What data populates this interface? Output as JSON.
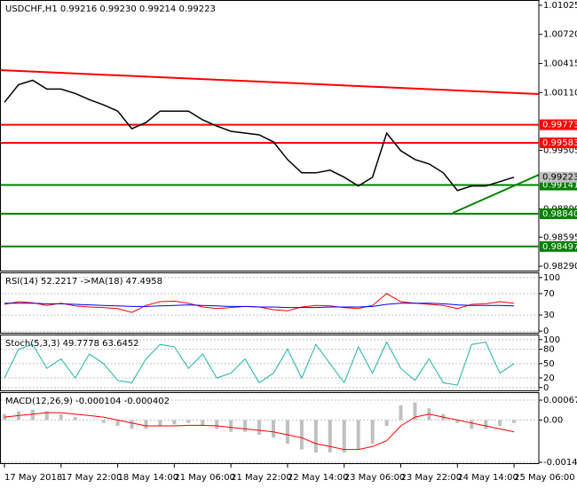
{
  "chart_data": [
    {
      "type": "line",
      "title": "USDCHF,H1  0.99216 0.99230 0.99214 0.99223",
      "x": [
        0,
        4,
        8,
        12,
        16,
        20,
        24,
        28,
        32,
        36,
        40,
        44,
        48,
        52,
        56,
        60,
        64,
        68,
        72,
        76,
        80,
        84,
        88,
        92,
        96,
        100,
        104,
        108,
        112,
        116,
        120,
        124,
        128,
        132,
        136,
        140,
        144
      ],
      "series": [
        {
          "color": "#000000",
          "values": [
            1.00008,
            1.00193,
            1.00239,
            1.00147,
            1.00147,
            1.00101,
            1.00036,
            0.99981,
            0.99916,
            0.99731,
            0.99796,
            0.99916,
            0.99916,
            0.99916,
            0.99824,
            0.99759,
            0.99704,
            0.99685,
            0.99667,
            0.99593,
            0.99408,
            0.99269,
            0.99269,
            0.99297,
            0.99223,
            0.99131,
            0.99223,
            0.99685,
            0.995,
            0.99408,
            0.99362,
            0.99269,
            0.99084,
            0.99131,
            0.99131,
            0.99177,
            0.99223
          ]
        }
      ],
      "levels": [
        {
          "value": 0.99773,
          "label": "0.99773",
          "color": "#ff0000"
        },
        {
          "value": 0.99583,
          "label": "0.99583",
          "color": "#ff0000"
        },
        {
          "value": 0.99141,
          "label": "0.99141",
          "color": "#008000"
        },
        {
          "value": 0.9884,
          "label": "0.98840",
          "color": "#008000"
        },
        {
          "value": 0.98497,
          "label": "0.98497",
          "color": "#008000"
        }
      ],
      "current": {
        "value": 0.99223,
        "label": "0.99223",
        "color": "#c0c0c0"
      },
      "ylim": [
        0.98244,
        1.01071
      ],
      "yticks": [
        1.01025,
        {
          "value": 1.0072,
          "label": "1.00720"
        },
        1.00415,
        {
          "value": 1.0011,
          "label": "1.00110"
        },
        0.99505,
        {
          "value": 0.9889,
          "label": "0.98890"
        },
        0.98595,
        {
          "value": 0.9829,
          "label": "0.98290"
        }
      ],
      "xlim": [
        -1,
        151
      ],
      "xticks": [
        {
          "value": 0,
          "label": "17 May 2018"
        },
        {
          "value": 16,
          "label": "17 May 22:00"
        },
        {
          "value": 32,
          "label": "18 May 14:00"
        },
        {
          "value": 48,
          "label": "21 May 06:00"
        },
        {
          "value": 64,
          "label": "21 May 22:00"
        },
        {
          "value": 80,
          "label": "22 May 14:00"
        },
        {
          "value": 96,
          "label": "23 May 06:00"
        },
        {
          "value": 112,
          "label": "23 May 22:00"
        },
        {
          "value": 128,
          "label": "24 May 14:00"
        },
        {
          "value": 144,
          "label": "25 May 06:00"
        }
      ]
    },
    {
      "type": "line",
      "title": "RSI(14) 52.2217  ->MA(18) 47.4958",
      "x": [
        0,
        4,
        8,
        12,
        16,
        20,
        24,
        28,
        32,
        36,
        40,
        44,
        48,
        52,
        56,
        60,
        64,
        68,
        72,
        76,
        80,
        84,
        88,
        92,
        96,
        100,
        104,
        108,
        112,
        116,
        120,
        124,
        128,
        132,
        136,
        140,
        144
      ],
      "series": [
        {
          "color": "#ff0000",
          "values": [
            50,
            55,
            53,
            48,
            52,
            47,
            45,
            44,
            42,
            35,
            48,
            55,
            56,
            52,
            45,
            42,
            44,
            46,
            45,
            40,
            38,
            45,
            48,
            47,
            44,
            42,
            48,
            70,
            55,
            52,
            50,
            48,
            42,
            50,
            51,
            55,
            52
          ]
        },
        {
          "color": "#0000ff",
          "values": [
            52,
            52,
            52,
            51,
            51,
            50,
            49,
            48,
            47,
            46,
            46,
            47,
            48,
            49,
            48,
            47,
            46,
            46,
            45,
            45,
            44,
            44,
            44,
            45,
            45,
            45,
            46,
            50,
            52,
            52,
            52,
            51,
            49,
            48,
            48,
            48,
            47
          ]
        }
      ],
      "ylim": [
        -3,
        108
      ],
      "yticks": [
        100,
        70,
        30,
        0
      ]
    },
    {
      "type": "line",
      "title": "Stoch(5,3,3) 49.7778 63.6452",
      "x": [
        0,
        4,
        8,
        12,
        16,
        20,
        24,
        28,
        32,
        36,
        40,
        44,
        48,
        52,
        56,
        60,
        64,
        68,
        72,
        76,
        80,
        84,
        88,
        92,
        96,
        100,
        104,
        108,
        112,
        116,
        120,
        124,
        128,
        132,
        136,
        140,
        144
      ],
      "series": [
        {
          "color": "#20b2aa",
          "values": [
            20,
            80,
            90,
            40,
            60,
            20,
            70,
            50,
            15,
            10,
            60,
            90,
            85,
            40,
            70,
            20,
            30,
            60,
            10,
            30,
            80,
            20,
            90,
            50,
            10,
            85,
            30,
            95,
            40,
            15,
            60,
            10,
            5,
            90,
            95,
            30,
            50
          ]
        }
      ],
      "ylim": [
        -6,
        109
      ],
      "yticks": [
        100,
        80,
        50,
        20,
        0
      ]
    },
    {
      "type": "bar",
      "title": "MACD(12,26,9) -0.000104 -0.000402",
      "x": [
        0,
        4,
        8,
        12,
        16,
        20,
        24,
        28,
        32,
        36,
        40,
        44,
        48,
        52,
        56,
        60,
        64,
        68,
        72,
        76,
        80,
        84,
        88,
        92,
        96,
        100,
        104,
        108,
        112,
        116,
        120,
        124,
        128,
        132,
        136,
        140,
        144
      ],
      "values": [
        0.0002,
        0.0003,
        0.00035,
        0.0003,
        0.0002,
        0.0001,
        0,
        -0.0001,
        -0.0002,
        -0.0003,
        -0.0003,
        -0.0002,
        -0.00015,
        -0.0001,
        -0.0002,
        -0.0003,
        -0.0004,
        -0.0004,
        -0.0005,
        -0.0006,
        -0.0008,
        -0.001,
        -0.0011,
        -0.0011,
        -0.0011,
        -0.001,
        -0.0008,
        -0.0002,
        0.0005,
        0.0006,
        0.0004,
        0.0002,
        -0.0001,
        -0.0003,
        -0.0003,
        -0.0002,
        -0.000104
      ],
      "color": "#c0c0c0",
      "series": [
        {
          "color": "#ff0000",
          "values": [
            0.0001,
            0.00015,
            0.0002,
            0.00025,
            0.00025,
            0.0002,
            0.00015,
            0.0001,
            0,
            -0.0001,
            -0.0002,
            -0.0002,
            -0.0002,
            -0.00018,
            -0.00018,
            -0.0002,
            -0.00025,
            -0.0003,
            -0.00035,
            -0.0004,
            -0.0005,
            -0.0006,
            -0.0008,
            -0.0009,
            -0.001,
            -0.001,
            -0.0009,
            -0.0007,
            -0.0002,
            0.0001,
            0.0002,
            0.0001,
            0,
            -0.0001,
            -0.0002,
            -0.0003,
            -0.000402
          ]
        }
      ],
      "ylim": [
        -0.001462,
        0.000914
      ],
      "yticks": [
        0.000673,
        {
          "value": 0,
          "label": "0.00"
        },
        -0.001432
      ]
    }
  ]
}
